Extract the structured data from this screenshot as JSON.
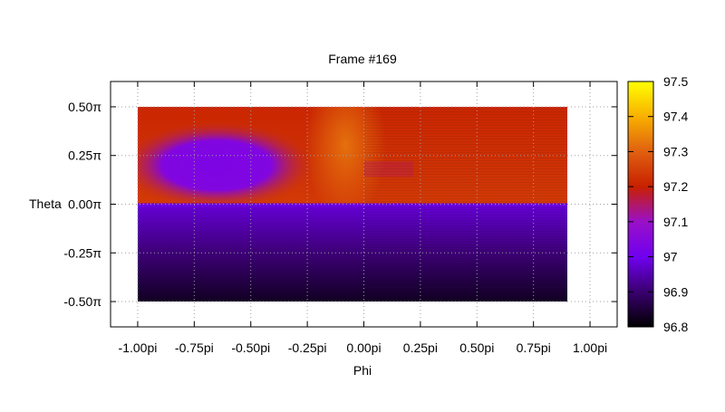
{
  "chart_data": {
    "type": "heatmap",
    "title": "Frame #169",
    "xlabel": "Phi",
    "ylabel": "Theta",
    "xlim": [
      -1.12,
      1.12
    ],
    "ylim": [
      -0.63,
      0.63
    ],
    "x_ticks": [
      {
        "value": -1.0,
        "label": "-1.00pi"
      },
      {
        "value": -0.75,
        "label": "-0.75pi"
      },
      {
        "value": -0.5,
        "label": "-0.50pi"
      },
      {
        "value": -0.25,
        "label": "-0.25pi"
      },
      {
        "value": 0.0,
        "label": "0.00pi"
      },
      {
        "value": 0.25,
        "label": "0.25pi"
      },
      {
        "value": 0.5,
        "label": "0.50pi"
      },
      {
        "value": 0.75,
        "label": "0.75pi"
      },
      {
        "value": 1.0,
        "label": "1.00pi"
      }
    ],
    "y_ticks": [
      {
        "value": 0.5,
        "label": "0.50π"
      },
      {
        "value": 0.25,
        "label": "0.25π"
      },
      {
        "value": 0.0,
        "label": "0.00π"
      },
      {
        "value": -0.25,
        "label": "-0.25π"
      },
      {
        "value": -0.5,
        "label": "-0.50π"
      }
    ],
    "grid": true,
    "data_extent": {
      "x": [
        -1.0,
        0.9
      ],
      "y": [
        -0.5,
        0.5
      ]
    },
    "colorbar": {
      "range": [
        96.8,
        97.5
      ],
      "ticks": [
        "96.8",
        "96.9",
        "97",
        "97.1",
        "97.2",
        "97.3",
        "97.4",
        "97.5"
      ],
      "colormap": [
        "#000000",
        "#3a0070",
        "#7000f0",
        "#9a10c8",
        "#c82000",
        "#e06010",
        "#f8b000",
        "#ffff00"
      ]
    },
    "approx_values": {
      "upper_background": 97.23,
      "upper_left_blob_center": {
        "phi": -0.65,
        "theta": 0.2,
        "value": 97.03
      },
      "upper_near_zero_phi": 97.32,
      "lower_near_equator": 96.98,
      "lower_near_bottom": 96.83
    }
  }
}
